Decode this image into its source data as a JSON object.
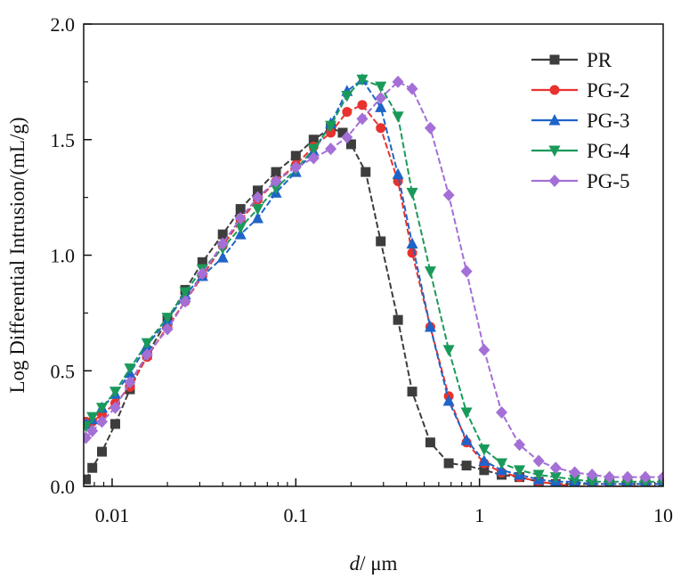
{
  "chart_data": {
    "type": "line",
    "title": "",
    "xlabel_italic": "d",
    "xlabel_rest": "/ μm",
    "ylabel": "Log Differential Intrusion/(mL/g)",
    "xscale": "log",
    "xlim": [
      0.007,
      10
    ],
    "ylim": [
      0,
      2.0
    ],
    "x_ticks": [
      {
        "value": 0.01,
        "label": "0.01"
      },
      {
        "value": 0.1,
        "label": "0.1"
      },
      {
        "value": 1,
        "label": "1"
      },
      {
        "value": 10,
        "label": "10"
      }
    ],
    "y_ticks": [
      {
        "value": 0.0,
        "label": "0.0"
      },
      {
        "value": 0.5,
        "label": "0.5"
      },
      {
        "value": 1.0,
        "label": "1.0"
      },
      {
        "value": 1.5,
        "label": "1.5"
      },
      {
        "value": 2.0,
        "label": "2.0"
      }
    ],
    "legend_position": "top-right",
    "grid": false,
    "series": [
      {
        "name": "PR",
        "color": "#3d3d3d",
        "marker": "square",
        "points": [
          [
            0.0072,
            0.03
          ],
          [
            0.0078,
            0.08
          ],
          [
            0.0088,
            0.15
          ],
          [
            0.0104,
            0.27
          ],
          [
            0.0125,
            0.42
          ],
          [
            0.0155,
            0.57
          ],
          [
            0.02,
            0.72
          ],
          [
            0.025,
            0.85
          ],
          [
            0.031,
            0.97
          ],
          [
            0.04,
            1.09
          ],
          [
            0.05,
            1.2
          ],
          [
            0.062,
            1.28
          ],
          [
            0.078,
            1.36
          ],
          [
            0.1,
            1.43
          ],
          [
            0.125,
            1.5
          ],
          [
            0.155,
            1.55
          ],
          [
            0.18,
            1.53
          ],
          [
            0.2,
            1.48
          ],
          [
            0.24,
            1.36
          ],
          [
            0.29,
            1.06
          ],
          [
            0.36,
            0.72
          ],
          [
            0.43,
            0.41
          ],
          [
            0.54,
            0.19
          ],
          [
            0.68,
            0.1
          ],
          [
            0.85,
            0.09
          ],
          [
            1.06,
            0.07
          ],
          [
            1.32,
            0.05
          ],
          [
            1.65,
            0.04
          ],
          [
            2.1,
            0.02
          ],
          [
            2.6,
            0.01
          ],
          [
            3.3,
            0.01
          ],
          [
            4.1,
            0.01
          ],
          [
            5.1,
            0.01
          ],
          [
            6.4,
            0.01
          ],
          [
            8,
            0.01
          ],
          [
            10,
            0.01
          ]
        ]
      },
      {
        "name": "PG-2",
        "color": "#e8322e",
        "marker": "circle",
        "points": [
          [
            0.0072,
            0.28
          ],
          [
            0.0078,
            0.28
          ],
          [
            0.0088,
            0.31
          ],
          [
            0.0104,
            0.36
          ],
          [
            0.0125,
            0.43
          ],
          [
            0.0155,
            0.56
          ],
          [
            0.02,
            0.69
          ],
          [
            0.025,
            0.8
          ],
          [
            0.031,
            0.91
          ],
          [
            0.04,
            1.04
          ],
          [
            0.05,
            1.15
          ],
          [
            0.062,
            1.24
          ],
          [
            0.078,
            1.32
          ],
          [
            0.1,
            1.39
          ],
          [
            0.125,
            1.47
          ],
          [
            0.155,
            1.53
          ],
          [
            0.19,
            1.62
          ],
          [
            0.23,
            1.65
          ],
          [
            0.29,
            1.55
          ],
          [
            0.36,
            1.32
          ],
          [
            0.43,
            1.01
          ],
          [
            0.54,
            0.69
          ],
          [
            0.68,
            0.39
          ],
          [
            0.85,
            0.19
          ],
          [
            1.06,
            0.1
          ],
          [
            1.32,
            0.06
          ],
          [
            1.65,
            0.04
          ],
          [
            2.1,
            0.02
          ],
          [
            2.6,
            0.01
          ],
          [
            3.3,
            0.0
          ],
          [
            4.1,
            0.0
          ],
          [
            5.1,
            0.0
          ],
          [
            6.4,
            0.0
          ],
          [
            8,
            0.0
          ],
          [
            10,
            0.0
          ]
        ]
      },
      {
        "name": "PG-3",
        "color": "#1f64c8",
        "marker": "triangle-up",
        "points": [
          [
            0.0072,
            0.27
          ],
          [
            0.0078,
            0.29
          ],
          [
            0.0088,
            0.34
          ],
          [
            0.0104,
            0.4
          ],
          [
            0.0125,
            0.49
          ],
          [
            0.0155,
            0.61
          ],
          [
            0.02,
            0.72
          ],
          [
            0.025,
            0.83
          ],
          [
            0.031,
            0.91
          ],
          [
            0.04,
            0.99
          ],
          [
            0.05,
            1.09
          ],
          [
            0.062,
            1.16
          ],
          [
            0.078,
            1.27
          ],
          [
            0.1,
            1.36
          ],
          [
            0.125,
            1.45
          ],
          [
            0.155,
            1.57
          ],
          [
            0.19,
            1.71
          ],
          [
            0.23,
            1.76
          ],
          [
            0.29,
            1.64
          ],
          [
            0.36,
            1.35
          ],
          [
            0.43,
            1.05
          ],
          [
            0.54,
            0.69
          ],
          [
            0.68,
            0.37
          ],
          [
            0.85,
            0.2
          ],
          [
            1.06,
            0.11
          ],
          [
            1.32,
            0.07
          ],
          [
            1.65,
            0.05
          ],
          [
            2.1,
            0.03
          ],
          [
            2.6,
            0.02
          ],
          [
            3.3,
            0.02
          ],
          [
            4.1,
            0.01
          ],
          [
            5.1,
            0.01
          ],
          [
            6.4,
            0.01
          ],
          [
            8,
            0.01
          ],
          [
            10,
            0.01
          ]
        ]
      },
      {
        "name": "PG-4",
        "color": "#1a9a5a",
        "marker": "triangle-down",
        "points": [
          [
            0.0072,
            0.26
          ],
          [
            0.0078,
            0.3
          ],
          [
            0.0088,
            0.34
          ],
          [
            0.0104,
            0.41
          ],
          [
            0.0125,
            0.51
          ],
          [
            0.0155,
            0.62
          ],
          [
            0.02,
            0.73
          ],
          [
            0.025,
            0.84
          ],
          [
            0.031,
            0.94
          ],
          [
            0.04,
            1.03
          ],
          [
            0.05,
            1.12
          ],
          [
            0.062,
            1.2
          ],
          [
            0.078,
            1.29
          ],
          [
            0.1,
            1.37
          ],
          [
            0.125,
            1.46
          ],
          [
            0.155,
            1.56
          ],
          [
            0.19,
            1.69
          ],
          [
            0.23,
            1.76
          ],
          [
            0.29,
            1.73
          ],
          [
            0.36,
            1.6
          ],
          [
            0.43,
            1.27
          ],
          [
            0.54,
            0.93
          ],
          [
            0.68,
            0.59
          ],
          [
            0.85,
            0.32
          ],
          [
            1.06,
            0.16
          ],
          [
            1.32,
            0.1
          ],
          [
            1.65,
            0.07
          ],
          [
            2.1,
            0.05
          ],
          [
            2.6,
            0.04
          ],
          [
            3.3,
            0.03
          ],
          [
            4.1,
            0.02
          ],
          [
            5.1,
            0.02
          ],
          [
            6.4,
            0.02
          ],
          [
            8,
            0.02
          ],
          [
            10,
            0.02
          ]
        ]
      },
      {
        "name": "PG-5",
        "color": "#a46fd6",
        "marker": "diamond",
        "points": [
          [
            0.0072,
            0.21
          ],
          [
            0.0078,
            0.24
          ],
          [
            0.0088,
            0.28
          ],
          [
            0.0104,
            0.34
          ],
          [
            0.0125,
            0.45
          ],
          [
            0.0155,
            0.57
          ],
          [
            0.02,
            0.68
          ],
          [
            0.025,
            0.8
          ],
          [
            0.031,
            0.92
          ],
          [
            0.04,
            1.05
          ],
          [
            0.05,
            1.16
          ],
          [
            0.062,
            1.25
          ],
          [
            0.078,
            1.32
          ],
          [
            0.1,
            1.38
          ],
          [
            0.125,
            1.42
          ],
          [
            0.155,
            1.46
          ],
          [
            0.19,
            1.51
          ],
          [
            0.23,
            1.59
          ],
          [
            0.29,
            1.68
          ],
          [
            0.36,
            1.75
          ],
          [
            0.43,
            1.72
          ],
          [
            0.54,
            1.55
          ],
          [
            0.68,
            1.26
          ],
          [
            0.85,
            0.93
          ],
          [
            1.06,
            0.59
          ],
          [
            1.32,
            0.32
          ],
          [
            1.65,
            0.18
          ],
          [
            2.1,
            0.11
          ],
          [
            2.6,
            0.08
          ],
          [
            3.3,
            0.06
          ],
          [
            4.1,
            0.05
          ],
          [
            5.1,
            0.04
          ],
          [
            6.4,
            0.04
          ],
          [
            8,
            0.04
          ],
          [
            10,
            0.04
          ]
        ]
      }
    ]
  }
}
